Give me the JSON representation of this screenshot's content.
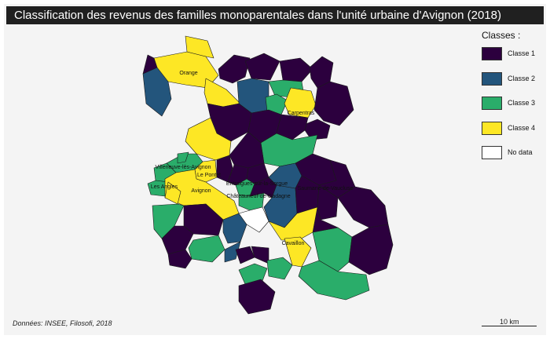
{
  "title": "Classification des revenus des familles monoparentales dans l'unité urbaine d'Avignon (2018)",
  "legend": {
    "title": "Classes :",
    "items": [
      {
        "label": "Classe 1",
        "color": "#2c003e"
      },
      {
        "label": "Classe 2",
        "color": "#23557c"
      },
      {
        "label": "Classe 3",
        "color": "#2aad6a"
      },
      {
        "label": "Classe 4",
        "color": "#fde725"
      },
      {
        "label": "No data",
        "color": "#ffffff"
      }
    ]
  },
  "cities": {
    "orange": "Orange",
    "carpentras": "Carpentras",
    "villeneuve": "Villeneuve-lès-Avignon",
    "le_pontet": "Le Pontet",
    "les_angles": "Les Angles",
    "avignon": "Avignon",
    "entraigues": "Entraigues-sur-la-Sorgue",
    "chateauneuf": "Châteauneuf-de-Gadagne",
    "saumane": "Saumane-de-Vaucluse",
    "cavaillon": "Cavaillon"
  },
  "source": "Données: INSEE, Filosofi, 2018",
  "scale": "10 km"
}
